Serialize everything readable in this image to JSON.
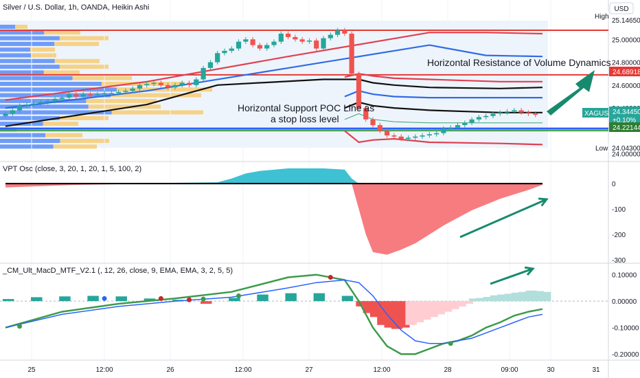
{
  "header": {
    "title": "Silver / U.S. Dollar, 1h, OANDA, Heikin Ashi",
    "currency": "USD"
  },
  "colors": {
    "up": "#26a69a",
    "down": "#ef5350",
    "resistance": "#e53935",
    "support": "#2962ff",
    "band_red": "#e04050",
    "band_blue": "#2f6be6",
    "band_black": "#111111",
    "band_green": "#35a46e",
    "vpt_pos": "#3ec1d3",
    "vpt_neg": "#f77c80",
    "macd_fast": "#3d9b4a",
    "macd_signal": "#2962ff",
    "macd_red": "#c62828",
    "arrow": "#178a6d"
  },
  "chart_data": [
    {
      "type": "candlestick",
      "title": "Silver / U.S. Dollar, 1h, OANDA, Heikin Ashi",
      "ylim": [
        23.98,
        25.2
      ],
      "y_ticks": [
        "25.00000",
        "24.80000",
        "24.60000",
        "24.40000",
        "24.00000"
      ],
      "price_labels": {
        "high_label": "High",
        "high_value": "25.14650",
        "resistance_value": "24.68918",
        "symbol": "XAGUSD",
        "last_value": "24.34450",
        "last_change": "+0.10%",
        "support_value": "24.22144",
        "low_label": "Low",
        "low_value": "24.04300"
      },
      "levels": {
        "top_red": 25.08,
        "resistance": 24.69,
        "support": 24.22
      },
      "candles": {
        "open": [
          24.33,
          24.35,
          24.38,
          24.42,
          24.43,
          24.44,
          24.45,
          24.46,
          24.48,
          24.49,
          24.52,
          24.5,
          24.52,
          24.51,
          24.52,
          24.53,
          24.53,
          24.54,
          24.55,
          24.57,
          24.6,
          24.61,
          24.62,
          24.6,
          24.58,
          24.6,
          24.62,
          24.6,
          24.65,
          24.75,
          24.8,
          24.88,
          24.9,
          24.92,
          24.98,
          25,
          24.95,
          24.92,
          24.95,
          24.98,
          25.05,
          25.02,
          25,
          24.98,
          24.99,
          24.92,
          25.01,
          25.04,
          25.08,
          25.05,
          24.7,
          24.4,
          24.3,
          24.25,
          24.2,
          24.16,
          24.15,
          24.13,
          24.14,
          24.15,
          24.16,
          24.17,
          24.18,
          24.22,
          24.23,
          24.25,
          24.27,
          24.3,
          24.32,
          24.33,
          24.35,
          24.36,
          24.37,
          24.38,
          24.36,
          24.35
        ],
        "close": [
          24.35,
          24.38,
          24.42,
          24.43,
          24.44,
          24.45,
          24.46,
          24.48,
          24.49,
          24.52,
          24.5,
          24.52,
          24.51,
          24.52,
          24.53,
          24.53,
          24.54,
          24.55,
          24.57,
          24.6,
          24.61,
          24.62,
          24.6,
          24.58,
          24.6,
          24.62,
          24.6,
          24.65,
          24.75,
          24.8,
          24.88,
          24.9,
          24.92,
          24.98,
          25,
          24.95,
          24.92,
          24.95,
          24.98,
          25.05,
          25.02,
          25,
          24.98,
          24.99,
          24.92,
          25.01,
          25.04,
          25.08,
          25.05,
          24.7,
          24.4,
          24.3,
          24.25,
          24.2,
          24.16,
          24.15,
          24.13,
          24.14,
          24.15,
          24.16,
          24.17,
          24.18,
          24.22,
          24.23,
          24.25,
          24.27,
          24.3,
          24.32,
          24.33,
          24.35,
          24.36,
          24.37,
          24.38,
          24.36,
          24.35,
          24.34
        ]
      },
      "bands": [
        {
          "name": "",
          "color_key": "band_red",
          "x": [
            0,
            20,
            40,
            60,
            68,
            76
          ],
          "y": [
            24.47,
            24.63,
            24.85,
            25.06,
            25.06,
            25.05
          ]
        },
        {
          "name": "",
          "color_key": "band_blue",
          "x": [
            0,
            20,
            40,
            60,
            68,
            76
          ],
          "y": [
            24.4,
            24.55,
            24.75,
            24.95,
            24.86,
            24.85
          ]
        },
        {
          "name": "",
          "color_key": "band_black",
          "x": [
            0,
            20,
            30,
            45,
            50,
            52,
            55,
            60,
            70,
            76
          ],
          "y": [
            24.24,
            24.43,
            24.6,
            24.65,
            24.65,
            24.62,
            24.6,
            24.58,
            24.57,
            24.58
          ]
        },
        {
          "name": "",
          "color_key": "band_red",
          "x": [
            48,
            50,
            52,
            55,
            60,
            70,
            76
          ],
          "y": [
            24.67,
            24.7,
            24.68,
            24.66,
            24.65,
            24.63,
            24.63
          ]
        },
        {
          "name": "",
          "color_key": "band_blue",
          "x": [
            48,
            50,
            52,
            55,
            60,
            70,
            76
          ],
          "y": [
            24.5,
            24.55,
            24.52,
            24.5,
            24.49,
            24.49,
            24.49
          ]
        },
        {
          "name": "",
          "color_key": "band_black",
          "x": [
            48,
            50,
            52,
            55,
            60,
            70,
            76
          ],
          "y": [
            24.4,
            24.45,
            24.42,
            24.4,
            24.38,
            24.36,
            24.36
          ]
        },
        {
          "name": "",
          "color_key": "band_green",
          "x": [
            48,
            50,
            52,
            55,
            60,
            70,
            76
          ],
          "y": [
            24.3,
            24.35,
            24.3,
            24.28,
            24.27,
            24.27,
            24.27
          ]
        },
        {
          "name": "",
          "color_key": "band_red",
          "x": [
            48,
            50,
            52,
            55,
            60,
            70,
            76
          ],
          "y": [
            24.2,
            24.1,
            24.12,
            24.13,
            24.1,
            24.09,
            24.08
          ]
        }
      ],
      "annotations": [
        {
          "text": "Horizontal Resistance of Volume Dynamics"
        },
        {
          "text": "Horizontal Support POC Line as"
        },
        {
          "text": "a stop loss level"
        }
      ]
    },
    {
      "type": "area",
      "title": "VPT Osc (close, 3, 20, 1, 20, 1, 5, 100, 2)",
      "ylim": [
        -300,
        60
      ],
      "y_ticks": [
        "0",
        "-100",
        "-200",
        "-300"
      ],
      "x": [
        0,
        10,
        20,
        30,
        32,
        34,
        36,
        40,
        45,
        48,
        49,
        50,
        51,
        52,
        54,
        56,
        58,
        60,
        62,
        64,
        66,
        70,
        74,
        76
      ],
      "values": [
        -15,
        -5,
        2,
        5,
        20,
        40,
        50,
        60,
        60,
        55,
        20,
        -100,
        -200,
        -270,
        -280,
        -260,
        -235,
        -200,
        -165,
        -135,
        -105,
        -60,
        -25,
        -5
      ]
    },
    {
      "type": "bar",
      "title": "_CM_Ult_MacD_MTF_V2.1 (, 12, 26, close, 9, EMA, EMA, 3, 2, 5, 5)",
      "ylim": [
        -0.21,
        0.12
      ],
      "y_ticks": [
        "0.10000",
        "0.00000",
        "-0.10000",
        "-0.20000"
      ],
      "histogram_x": [
        0,
        4,
        8,
        12,
        16,
        20,
        24,
        28,
        32,
        36,
        40,
        44,
        48,
        50,
        51,
        52,
        53,
        54,
        55,
        56,
        57,
        58,
        59,
        60,
        61,
        62,
        63,
        64,
        65,
        66,
        67,
        68,
        69,
        70,
        71,
        72,
        73,
        74,
        75,
        76
      ],
      "histogram": [
        0.008,
        0.015,
        0.018,
        0.02,
        0.018,
        0.01,
        0.005,
        -0.01,
        0.012,
        0.025,
        0.03,
        0.03,
        0.02,
        -0.02,
        -0.045,
        -0.06,
        -0.09,
        -0.1,
        -0.105,
        -0.1,
        -0.09,
        -0.08,
        -0.07,
        -0.06,
        -0.05,
        -0.04,
        -0.03,
        -0.02,
        -0.01,
        0.01,
        0.012,
        0.016,
        0.022,
        0.025,
        0.028,
        0.032,
        0.035,
        0.04,
        0.038,
        0.035
      ],
      "series": [
        {
          "name": "",
          "color_key": "macd_fast",
          "x": [
            0,
            8,
            16,
            24,
            32,
            40,
            44,
            48,
            50,
            52,
            54,
            56,
            58,
            60,
            62,
            64,
            66,
            68,
            70,
            72,
            74,
            76
          ],
          "y": [
            -0.1,
            -0.04,
            -0.01,
            0.01,
            0.035,
            0.09,
            0.1,
            0.08,
            0,
            -0.1,
            -0.17,
            -0.2,
            -0.2,
            -0.18,
            -0.16,
            -0.15,
            -0.13,
            -0.1,
            -0.08,
            -0.055,
            -0.04,
            -0.03
          ]
        },
        {
          "name": "",
          "color_key": "macd_signal",
          "x": [
            0,
            8,
            16,
            24,
            32,
            40,
            44,
            48,
            50,
            52,
            54,
            56,
            58,
            60,
            62,
            64,
            66,
            68,
            70,
            72,
            74,
            76
          ],
          "y": [
            -0.1,
            -0.05,
            -0.02,
            0,
            0.015,
            0.05,
            0.07,
            0.08,
            0.07,
            0.02,
            -0.05,
            -0.11,
            -0.15,
            -0.16,
            -0.16,
            -0.15,
            -0.14,
            -0.12,
            -0.1,
            -0.08,
            -0.06,
            -0.05
          ]
        }
      ],
      "cross_points": [
        {
          "x": 2,
          "y": -0.095,
          "color_key": "macd_fast"
        },
        {
          "x": 14,
          "y": 0.01,
          "color_key": "macd_signal"
        },
        {
          "x": 22,
          "y": 0.01,
          "color_key": "macd_red"
        },
        {
          "x": 26,
          "y": 0.005,
          "color_key": "macd_red"
        },
        {
          "x": 28,
          "y": 0.008,
          "color_key": "macd_fast"
        },
        {
          "x": 33,
          "y": 0.02,
          "color_key": "macd_fast"
        },
        {
          "x": 46,
          "y": 0.09,
          "color_key": "macd_red"
        },
        {
          "x": 63,
          "y": -0.16,
          "color_key": "macd_fast"
        }
      ]
    }
  ],
  "time_axis": {
    "labels": [
      "25",
      "12:00",
      "26",
      "12:00",
      "27",
      "12:00",
      "28",
      "09:00",
      "30",
      "31"
    ]
  }
}
